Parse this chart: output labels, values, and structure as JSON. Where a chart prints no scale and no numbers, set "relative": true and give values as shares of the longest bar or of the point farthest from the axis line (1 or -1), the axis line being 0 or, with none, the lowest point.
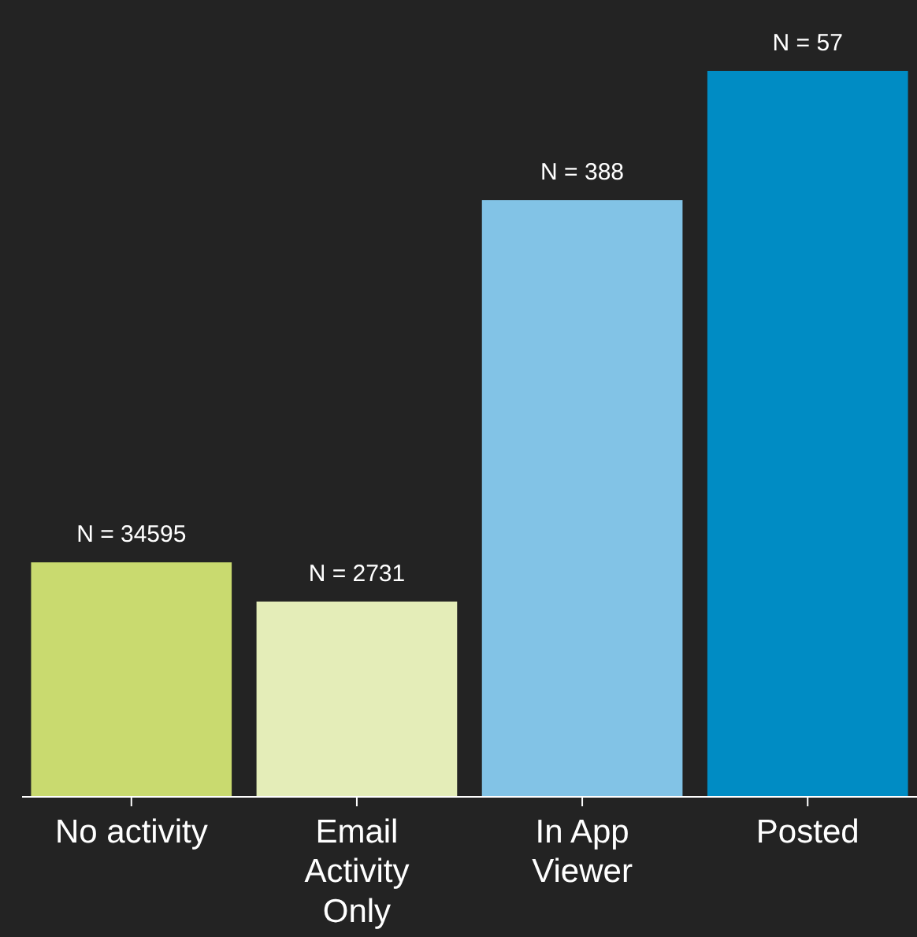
{
  "chart_data": {
    "type": "bar",
    "relative": true,
    "categories": [
      "No activity",
      "Email Activity Only",
      "In App Viewer",
      "Posted"
    ],
    "values": [
      0.323,
      0.269,
      0.822,
      1
    ],
    "colors": [
      "#c9da6f",
      "#e4edb8",
      "#82c3e6",
      "#008cc4"
    ],
    "annotations": [
      {
        "text": "N = 34595",
        "x": "No activity",
        "y": 0.323
      },
      {
        "text": "N = 2731",
        "x": "Email Activity Only",
        "y": 0.269
      },
      {
        "text": "N = 388",
        "x": "In App Viewer",
        "y": 0.822
      },
      {
        "text": "N = 57",
        "x": "Posted",
        "y": 1
      }
    ]
  }
}
